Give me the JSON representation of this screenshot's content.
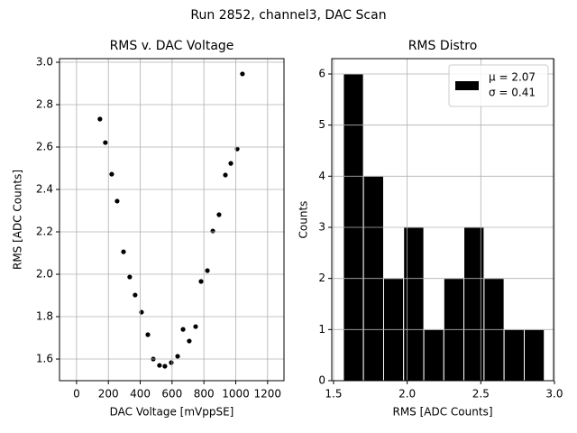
{
  "title": "Run 2852, channel3, DAC Scan",
  "chart_data": [
    {
      "type": "scatter",
      "title": "RMS v. DAC Voltage",
      "xlabel": "DAC Voltage [mVppSE]",
      "ylabel": "RMS [ADC Counts]",
      "color": "#000000",
      "x": [
        147,
        181,
        221,
        255,
        295,
        334,
        368,
        408,
        448,
        482,
        521,
        555,
        595,
        635,
        669,
        708,
        748,
        782,
        822,
        856,
        895,
        935,
        969,
        1009,
        1042
      ],
      "values": [
        2.732,
        2.621,
        2.472,
        2.345,
        2.106,
        1.987,
        1.902,
        1.821,
        1.715,
        1.6,
        1.57,
        1.566,
        1.583,
        1.613,
        1.74,
        1.685,
        1.753,
        1.966,
        2.017,
        2.204,
        2.281,
        2.468,
        2.523,
        2.591,
        2.945
      ],
      "xlim": [
        -107,
        1303
      ],
      "ylim": [
        1.498,
        3.017
      ],
      "xticks": [
        0,
        200,
        400,
        600,
        800,
        1000,
        1200
      ],
      "yticks": [
        1.6,
        1.8,
        {
          "value": 2.0,
          "label": "2.0"
        },
        2.2,
        2.4,
        2.6,
        2.8,
        {
          "value": 3.0,
          "label": "3.0"
        }
      ],
      "grid": true
    },
    {
      "type": "histogram",
      "title": "RMS Distro",
      "xlabel": "RMS [ADC Counts]",
      "ylabel": "Counts",
      "color": "#000000",
      "bins": [
        1.567,
        1.703,
        1.84,
        1.976,
        2.113,
        2.249,
        2.385,
        2.522,
        2.658,
        2.795,
        2.931
      ],
      "values": [
        6,
        4,
        2,
        3,
        1,
        2,
        3,
        2,
        1,
        1
      ],
      "legend_labels": [
        "μ = 2.07",
        "σ = 0.41"
      ],
      "legend": "upper right",
      "xlim": [
        1.488,
        2.994
      ],
      "ylim": [
        0,
        6.3
      ],
      "xticks": [
        1.5,
        {
          "value": 2.0,
          "label": "2.0"
        },
        2.5,
        {
          "value": 3.0,
          "label": "3.0"
        }
      ],
      "yticks": [
        0,
        1,
        2,
        3,
        4,
        5,
        6
      ],
      "grid": true
    }
  ]
}
